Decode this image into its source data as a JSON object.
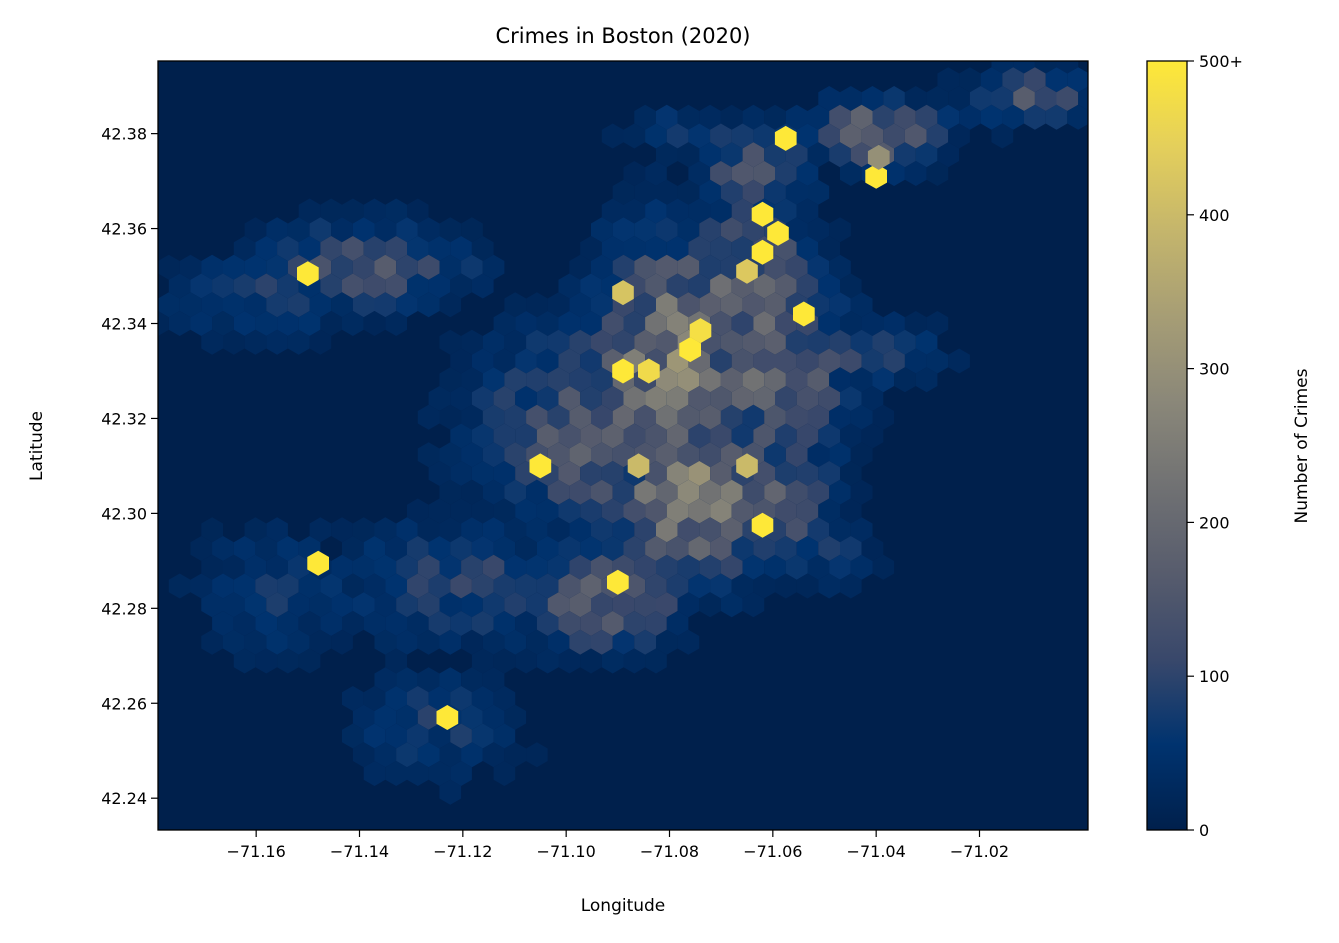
{
  "chart_data": {
    "type": "heatmap",
    "subtype": "hexbin",
    "title": "Crimes in Boston (2020)",
    "xlabel": "Longitude",
    "ylabel": "Latitude",
    "xlim": [
      -71.179,
      -70.999
    ],
    "ylim": [
      42.2333,
      42.3953
    ],
    "x_ticks": [
      -71.16,
      -71.14,
      -71.12,
      -71.1,
      -71.08,
      -71.06,
      -71.04,
      -71.02
    ],
    "x_tick_labels": [
      "−71.16",
      "−71.14",
      "−71.12",
      "−71.10",
      "−71.08",
      "−71.06",
      "−71.04",
      "−71.02"
    ],
    "y_ticks": [
      42.24,
      42.26,
      42.28,
      42.3,
      42.32,
      42.34,
      42.36,
      42.38
    ],
    "y_tick_labels": [
      "42.24",
      "42.26",
      "42.28",
      "42.30",
      "42.32",
      "42.34",
      "42.36",
      "42.38"
    ],
    "colorbar": {
      "label": "Number of Crimes",
      "min": 0,
      "max": 500,
      "ticks": [
        0,
        100,
        200,
        300,
        400,
        500
      ],
      "tick_labels": [
        "0",
        "100",
        "200",
        "300",
        "400",
        "500+"
      ],
      "colormap": "cividis",
      "colors": [
        "#00204c",
        "#00336f",
        "#39486b",
        "#575c6d",
        "#707173",
        "#8a8779",
        "#a69d75",
        "#c4b56c",
        "#e4cf5b",
        "#fee838"
      ]
    },
    "grid": false,
    "cells": [
      {
        "lon": -71.0575,
        "lat": 42.379,
        "count": 510
      },
      {
        "lon": -71.04,
        "lat": 42.371,
        "count": 520
      },
      {
        "lon": -71.0395,
        "lat": 42.375,
        "count": 300
      },
      {
        "lon": -71.062,
        "lat": 42.363,
        "count": 520
      },
      {
        "lon": -71.059,
        "lat": 42.359,
        "count": 520
      },
      {
        "lon": -71.062,
        "lat": 42.355,
        "count": 510
      },
      {
        "lon": -71.065,
        "lat": 42.351,
        "count": 430
      },
      {
        "lon": -71.054,
        "lat": 42.342,
        "count": 520
      },
      {
        "lon": -71.074,
        "lat": 42.3385,
        "count": 480
      },
      {
        "lon": -71.076,
        "lat": 42.3345,
        "count": 520
      },
      {
        "lon": -71.089,
        "lat": 42.33,
        "count": 520
      },
      {
        "lon": -71.084,
        "lat": 42.33,
        "count": 470
      },
      {
        "lon": -71.089,
        "lat": 42.3465,
        "count": 420
      },
      {
        "lon": -71.105,
        "lat": 42.31,
        "count": 520
      },
      {
        "lon": -71.086,
        "lat": 42.31,
        "count": 400
      },
      {
        "lon": -71.065,
        "lat": 42.31,
        "count": 400
      },
      {
        "lon": -71.062,
        "lat": 42.2975,
        "count": 520
      },
      {
        "lon": -71.09,
        "lat": 42.2855,
        "count": 520
      },
      {
        "lon": -71.15,
        "lat": 42.3505,
        "count": 520
      },
      {
        "lon": -71.148,
        "lat": 42.2895,
        "count": 520
      },
      {
        "lon": -71.123,
        "lat": 42.257,
        "count": 520
      }
    ],
    "clusters": [
      {
        "lon": -71.08,
        "lat": 42.33,
        "rx": 0.016,
        "ry": 0.03,
        "count": 230
      },
      {
        "lon": -71.09,
        "lat": 42.318,
        "rx": 0.028,
        "ry": 0.022,
        "count": 160
      },
      {
        "lon": -71.076,
        "lat": 42.303,
        "rx": 0.016,
        "ry": 0.018,
        "count": 240
      },
      {
        "lon": -71.065,
        "lat": 42.345,
        "rx": 0.014,
        "ry": 0.022,
        "count": 180
      },
      {
        "lon": -71.06,
        "lat": 42.33,
        "rx": 0.016,
        "ry": 0.022,
        "count": 170
      },
      {
        "lon": -71.064,
        "lat": 42.372,
        "rx": 0.012,
        "ry": 0.01,
        "count": 140
      },
      {
        "lon": -71.06,
        "lat": 42.305,
        "rx": 0.012,
        "ry": 0.016,
        "count": 160
      },
      {
        "lon": -71.045,
        "lat": 42.334,
        "rx": 0.018,
        "ry": 0.008,
        "count": 105
      },
      {
        "lon": -71.093,
        "lat": 42.282,
        "rx": 0.018,
        "ry": 0.012,
        "count": 150
      },
      {
        "lon": -71.12,
        "lat": 42.285,
        "rx": 0.025,
        "ry": 0.014,
        "count": 95
      },
      {
        "lon": -71.138,
        "lat": 42.352,
        "rx": 0.022,
        "ry": 0.01,
        "count": 130
      },
      {
        "lon": -71.16,
        "lat": 42.345,
        "rx": 0.018,
        "ry": 0.01,
        "count": 80
      },
      {
        "lon": -71.155,
        "lat": 42.283,
        "rx": 0.02,
        "ry": 0.016,
        "count": 60
      },
      {
        "lon": -71.125,
        "lat": 42.255,
        "rx": 0.018,
        "ry": 0.014,
        "count": 70
      },
      {
        "lon": -71.04,
        "lat": 42.38,
        "rx": 0.014,
        "ry": 0.008,
        "count": 170
      },
      {
        "lon": -71.01,
        "lat": 42.388,
        "rx": 0.014,
        "ry": 0.007,
        "count": 120
      },
      {
        "lon": -71.053,
        "lat": 42.292,
        "rx": 0.014,
        "ry": 0.008,
        "count": 75
      },
      {
        "lon": -71.077,
        "lat": 42.38,
        "rx": 0.014,
        "ry": 0.005,
        "count": 80
      }
    ]
  }
}
